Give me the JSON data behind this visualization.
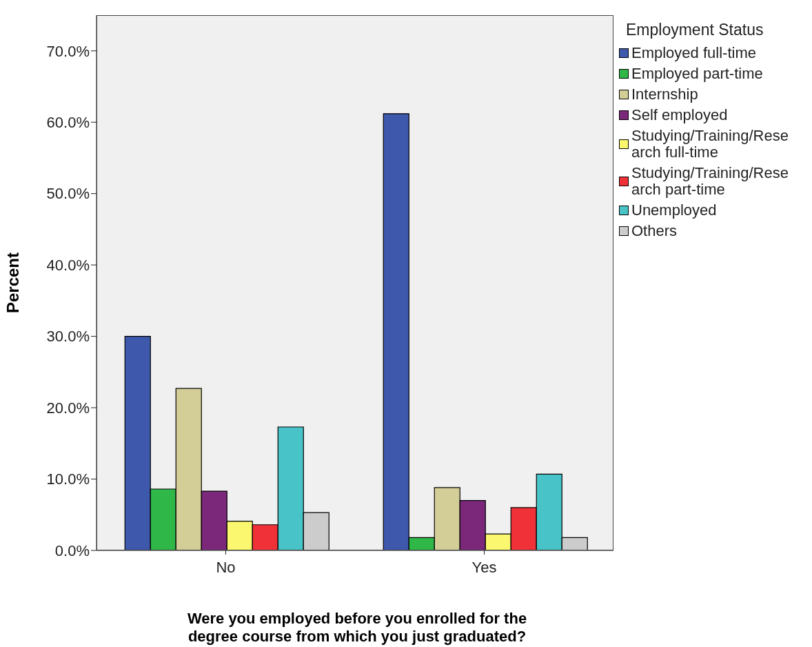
{
  "chart_data": {
    "type": "bar",
    "ylabel": "Percent",
    "xlabel": "Were you employed before you enrolled for the degree course from which you just graduated?",
    "legend_title": "Employment Status",
    "legend": "top right",
    "categories": [
      "No",
      "Yes"
    ],
    "ylim": [
      0,
      75
    ],
    "yticks": [
      {
        "value": 0,
        "label": "0.0%"
      },
      {
        "value": 10,
        "label": "10.0%"
      },
      {
        "value": 20,
        "label": "20.0%"
      },
      {
        "value": 30,
        "label": "30.0%"
      },
      {
        "value": 40,
        "label": "40.0%"
      },
      {
        "value": 50,
        "label": "50.0%"
      },
      {
        "value": 60,
        "label": "60.0%"
      },
      {
        "value": 70,
        "label": "70.0%"
      }
    ],
    "series": [
      {
        "name": "Employed full-time",
        "color": "#3e58ac",
        "values": [
          30.0,
          61.2
        ]
      },
      {
        "name": "Employed part-time",
        "color": "#2fb848",
        "values": [
          8.6,
          1.8
        ]
      },
      {
        "name": "Internship",
        "color": "#d3ce97",
        "values": [
          22.7,
          8.8
        ]
      },
      {
        "name": "Self employed",
        "color": "#7b287b",
        "values": [
          8.3,
          7.0
        ]
      },
      {
        "name": "Studying/Training/Research full-time",
        "color": "#fbf76f",
        "values": [
          4.1,
          2.3
        ]
      },
      {
        "name": "Studying/Training/Research part-time",
        "color": "#f03238",
        "values": [
          3.6,
          6.0
        ]
      },
      {
        "name": "Unemployed",
        "color": "#48c3c7",
        "values": [
          17.3,
          10.7
        ]
      },
      {
        "name": "Others",
        "color": "#cccccc",
        "values": [
          5.3,
          1.8
        ]
      }
    ]
  }
}
